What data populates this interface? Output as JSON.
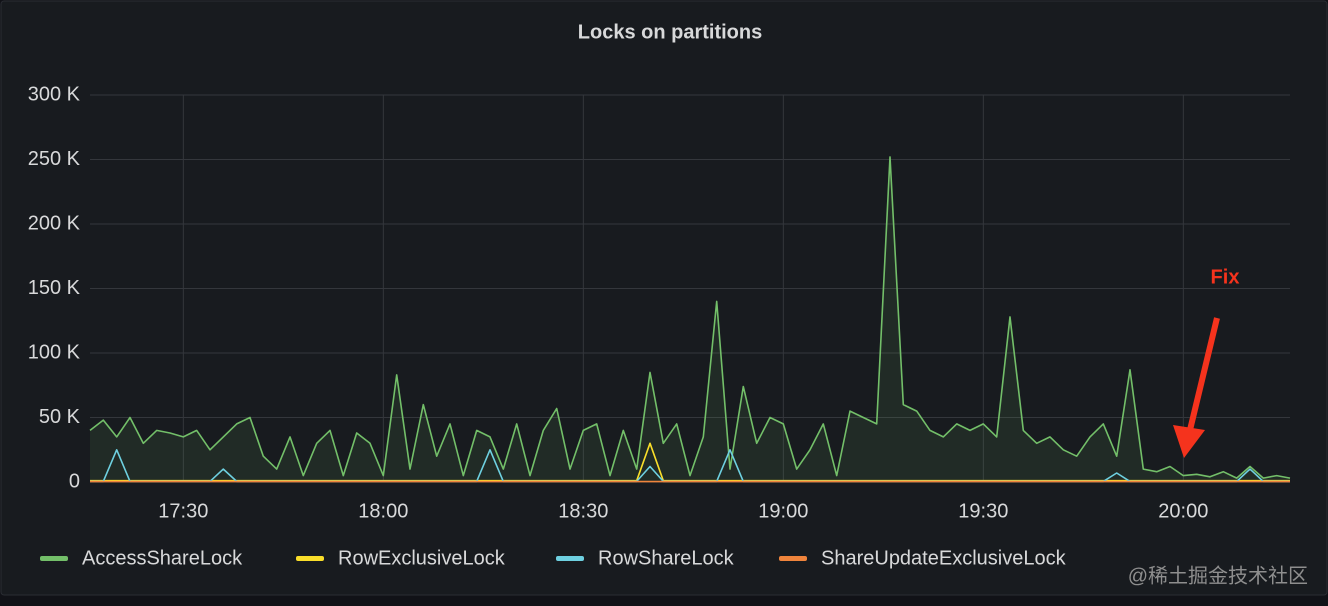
{
  "chart_data": {
    "type": "line",
    "title": "Locks on partitions",
    "annotation": "Fix",
    "watermark": "@稀土掘金技术社区",
    "x": [
      "17:16",
      "17:18",
      "17:20",
      "17:22",
      "17:24",
      "17:26",
      "17:28",
      "17:30",
      "17:32",
      "17:34",
      "17:36",
      "17:38",
      "17:40",
      "17:42",
      "17:44",
      "17:46",
      "17:48",
      "17:50",
      "17:52",
      "17:54",
      "17:56",
      "17:58",
      "18:00",
      "18:02",
      "18:04",
      "18:06",
      "18:08",
      "18:10",
      "18:12",
      "18:14",
      "18:16",
      "18:18",
      "18:20",
      "18:22",
      "18:24",
      "18:26",
      "18:28",
      "18:30",
      "18:32",
      "18:34",
      "18:36",
      "18:38",
      "18:40",
      "18:42",
      "18:44",
      "18:46",
      "18:48",
      "18:50",
      "18:52",
      "18:54",
      "18:56",
      "18:58",
      "19:00",
      "19:02",
      "19:04",
      "19:06",
      "19:08",
      "19:10",
      "19:12",
      "19:14",
      "19:16",
      "19:18",
      "19:20",
      "19:22",
      "19:24",
      "19:26",
      "19:28",
      "19:30",
      "19:32",
      "19:34",
      "19:36",
      "19:38",
      "19:40",
      "19:42",
      "19:44",
      "19:46",
      "19:48",
      "19:50",
      "19:52",
      "19:54",
      "19:56",
      "19:58",
      "20:00",
      "20:02",
      "20:04",
      "20:06",
      "20:08",
      "20:10",
      "20:12",
      "20:14",
      "20:16"
    ],
    "xlim": [
      "17:16",
      "20:16"
    ],
    "xticks": [
      "17:30",
      "18:00",
      "18:30",
      "19:00",
      "19:30",
      "20:00"
    ],
    "ylim": [
      0,
      300000
    ],
    "yticks": [
      {
        "value": 0,
        "label": "0"
      },
      {
        "value": 50000,
        "label": "50 K"
      },
      {
        "value": 100000,
        "label": "100 K"
      },
      {
        "value": 150000,
        "label": "150 K"
      },
      {
        "value": 200000,
        "label": "200 K"
      },
      {
        "value": 250000,
        "label": "250 K"
      },
      {
        "value": 300000,
        "label": "300 K"
      }
    ],
    "grid": true,
    "legend": "bottom",
    "series": [
      {
        "name": "AccessShareLock",
        "color": "#73bf69",
        "fill": true,
        "values": [
          40000,
          48000,
          35000,
          50000,
          30000,
          40000,
          38000,
          35000,
          40000,
          25000,
          35000,
          45000,
          50000,
          20000,
          10000,
          35000,
          5000,
          30000,
          40000,
          5000,
          38000,
          30000,
          5000,
          83000,
          10000,
          60000,
          20000,
          45000,
          5000,
          40000,
          35000,
          10000,
          45000,
          5000,
          40000,
          57000,
          10000,
          40000,
          45000,
          5000,
          40000,
          10000,
          85000,
          30000,
          45000,
          5000,
          35000,
          140000,
          10000,
          74000,
          30000,
          50000,
          45000,
          10000,
          25000,
          45000,
          5000,
          55000,
          50000,
          45000,
          252000,
          60000,
          55000,
          40000,
          35000,
          45000,
          40000,
          45000,
          35000,
          128000,
          40000,
          30000,
          35000,
          25000,
          20000,
          35000,
          45000,
          20000,
          87000,
          10000,
          8000,
          12000,
          5000,
          6000,
          4000,
          8000,
          3000,
          12000,
          3000,
          5000,
          3000
        ]
      },
      {
        "name": "RowExclusiveLock",
        "color": "#fade2a",
        "fill": false,
        "values": [
          1000,
          1000,
          1000,
          1000,
          1000,
          1000,
          1000,
          1000,
          1000,
          1000,
          1000,
          1000,
          1000,
          1000,
          1000,
          1000,
          1000,
          1000,
          1000,
          1000,
          1000,
          1000,
          1000,
          1000,
          1000,
          1000,
          1000,
          1000,
          1000,
          1000,
          1000,
          1000,
          1000,
          1000,
          1000,
          1000,
          1000,
          1000,
          1000,
          1000,
          1000,
          1000,
          30000,
          1000,
          1000,
          1000,
          1000,
          1000,
          1000,
          1000,
          1000,
          1000,
          1000,
          1000,
          1000,
          1000,
          1000,
          1000,
          1000,
          1000,
          1000,
          1000,
          1000,
          1000,
          1000,
          1000,
          1000,
          1000,
          1000,
          1000,
          1000,
          1000,
          1000,
          1000,
          1000,
          1000,
          1000,
          1000,
          1000,
          1000,
          1000,
          1000,
          1000,
          1000,
          1000,
          1000,
          1000,
          1000,
          1000,
          1000,
          1000
        ]
      },
      {
        "name": "RowShareLock",
        "color": "#6ed0e0",
        "fill": false,
        "values": [
          500,
          500,
          25000,
          500,
          500,
          500,
          500,
          500,
          500,
          500,
          10000,
          500,
          500,
          500,
          500,
          500,
          500,
          500,
          500,
          500,
          500,
          500,
          500,
          500,
          500,
          500,
          500,
          500,
          500,
          500,
          25000,
          500,
          500,
          500,
          500,
          500,
          500,
          500,
          500,
          500,
          500,
          500,
          12000,
          500,
          500,
          500,
          500,
          500,
          25000,
          500,
          500,
          500,
          500,
          500,
          500,
          500,
          500,
          500,
          500,
          500,
          500,
          500,
          500,
          500,
          500,
          500,
          500,
          500,
          500,
          500,
          500,
          500,
          500,
          500,
          500,
          500,
          500,
          7000,
          500,
          500,
          500,
          500,
          500,
          500,
          500,
          500,
          500,
          10000,
          500,
          500,
          500
        ]
      },
      {
        "name": "ShareUpdateExclusiveLock",
        "color": "#ef843c",
        "fill": false,
        "values": [
          300,
          300,
          300,
          300,
          300,
          300,
          300,
          300,
          300,
          300,
          300,
          300,
          300,
          300,
          300,
          300,
          300,
          300,
          300,
          300,
          300,
          300,
          300,
          300,
          300,
          300,
          300,
          300,
          300,
          300,
          300,
          300,
          300,
          300,
          300,
          300,
          300,
          300,
          300,
          300,
          300,
          300,
          300,
          300,
          300,
          300,
          300,
          300,
          300,
          300,
          300,
          300,
          300,
          300,
          300,
          300,
          300,
          300,
          300,
          300,
          300,
          300,
          300,
          300,
          300,
          300,
          300,
          300,
          300,
          300,
          300,
          300,
          300,
          300,
          300,
          300,
          300,
          300,
          300,
          300,
          300,
          300,
          300,
          300,
          300,
          300,
          300,
          300,
          300,
          300,
          300
        ]
      }
    ]
  }
}
